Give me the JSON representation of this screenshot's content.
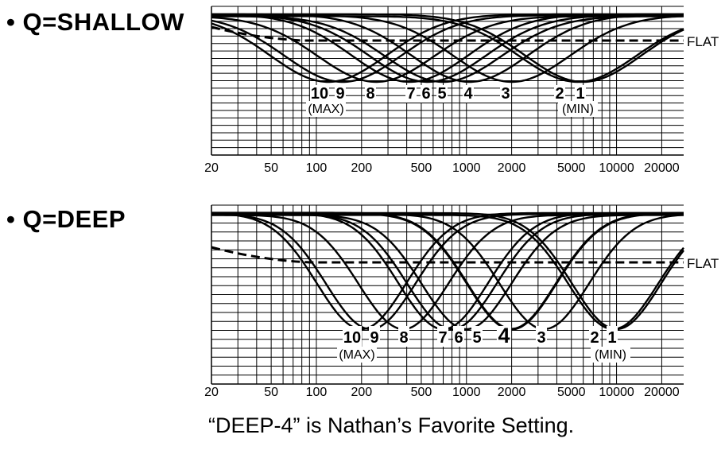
{
  "caption": "“DEEP-4” is Nathan’s Favorite Setting.",
  "colors": {
    "ink": "#000000",
    "background": "#ffffff"
  },
  "chart_data": [
    {
      "type": "line",
      "title": "• Q=SHALLOW",
      "x_scale": "log",
      "xlim": [
        20,
        28000
      ],
      "x_ticks": [
        20,
        50,
        100,
        200,
        500,
        1000,
        2000,
        5000,
        10000,
        20000
      ],
      "x_tick_labels": [
        "20",
        "50",
        "100",
        "200",
        "500",
        "1000",
        "2000",
        "5000",
        "10000",
        "20000"
      ],
      "grid": true,
      "y_gridlines": 20,
      "flat_line": {
        "label": "FLAT",
        "style": "dashed"
      },
      "series": [
        {
          "name": "10",
          "center_hz": 120,
          "depth_fraction": 0.84
        },
        {
          "name": "9",
          "center_hz": 150,
          "depth_fraction": 0.84
        },
        {
          "name": "8",
          "center_hz": 250,
          "depth_fraction": 0.84
        },
        {
          "name": "7",
          "center_hz": 420,
          "depth_fraction": 0.84
        },
        {
          "name": "6",
          "center_hz": 550,
          "depth_fraction": 0.84
        },
        {
          "name": "5",
          "center_hz": 700,
          "depth_fraction": 0.84
        },
        {
          "name": "4",
          "center_hz": 1050,
          "depth_fraction": 0.84
        },
        {
          "name": "3",
          "center_hz": 2000,
          "depth_fraction": 0.84
        },
        {
          "name": "2",
          "center_hz": 5500,
          "depth_fraction": 0.84
        },
        {
          "name": "1",
          "center_hz": 6000,
          "depth_fraction": 0.84
        }
      ],
      "curve_labels": [
        "10",
        "9",
        "8",
        "7",
        "6",
        "5",
        "4",
        "3",
        "2",
        "1"
      ],
      "bracket_labels": [
        "(MAX)",
        "(MIN)"
      ]
    },
    {
      "type": "line",
      "title": "• Q=DEEP",
      "x_scale": "log",
      "xlim": [
        20,
        28000
      ],
      "x_ticks": [
        20,
        50,
        100,
        200,
        500,
        1000,
        2000,
        5000,
        10000,
        20000
      ],
      "x_tick_labels": [
        "20",
        "50",
        "100",
        "200",
        "500",
        "1000",
        "2000",
        "5000",
        "10000",
        "20000"
      ],
      "grid": true,
      "y_gridlines": 20,
      "flat_line": {
        "label": "FLAT",
        "style": "dashed"
      },
      "series": [
        {
          "name": "10",
          "center_hz": 200,
          "depth_fraction": 0.88
        },
        {
          "name": "9",
          "center_hz": 230,
          "depth_fraction": 0.88
        },
        {
          "name": "8",
          "center_hz": 380,
          "depth_fraction": 0.88
        },
        {
          "name": "7",
          "center_hz": 700,
          "depth_fraction": 0.88
        },
        {
          "name": "6",
          "center_hz": 800,
          "depth_fraction": 0.88
        },
        {
          "name": "5",
          "center_hz": 1000,
          "depth_fraction": 0.88
        },
        {
          "name": "4",
          "center_hz": 2000,
          "depth_fraction": 0.88
        },
        {
          "name": "3",
          "center_hz": 3300,
          "depth_fraction": 0.88
        },
        {
          "name": "2",
          "center_hz": 9500,
          "depth_fraction": 0.88
        },
        {
          "name": "1",
          "center_hz": 10000,
          "depth_fraction": 0.88
        }
      ],
      "curve_labels": [
        "10",
        "9",
        "8",
        "7",
        "6",
        "5",
        "4",
        "3",
        "2",
        "1"
      ],
      "bracket_labels": [
        "(MAX)",
        "(MIN)"
      ]
    }
  ]
}
